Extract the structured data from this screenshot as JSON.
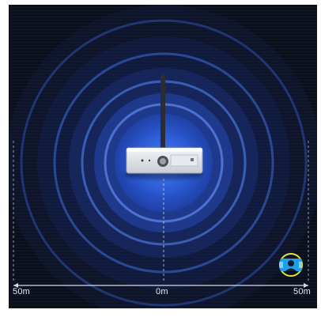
{
  "scale": {
    "left_label": "50m",
    "center_label": "0m",
    "right_label": "50m"
  },
  "colors": {
    "background": "#0b0f1c",
    "wave": "#3f74ff",
    "target": "#1ea0e6",
    "target_ring": "#e0e63a"
  },
  "icons": {
    "device": "wireless-receiver-icon",
    "target": "person-target-icon"
  }
}
